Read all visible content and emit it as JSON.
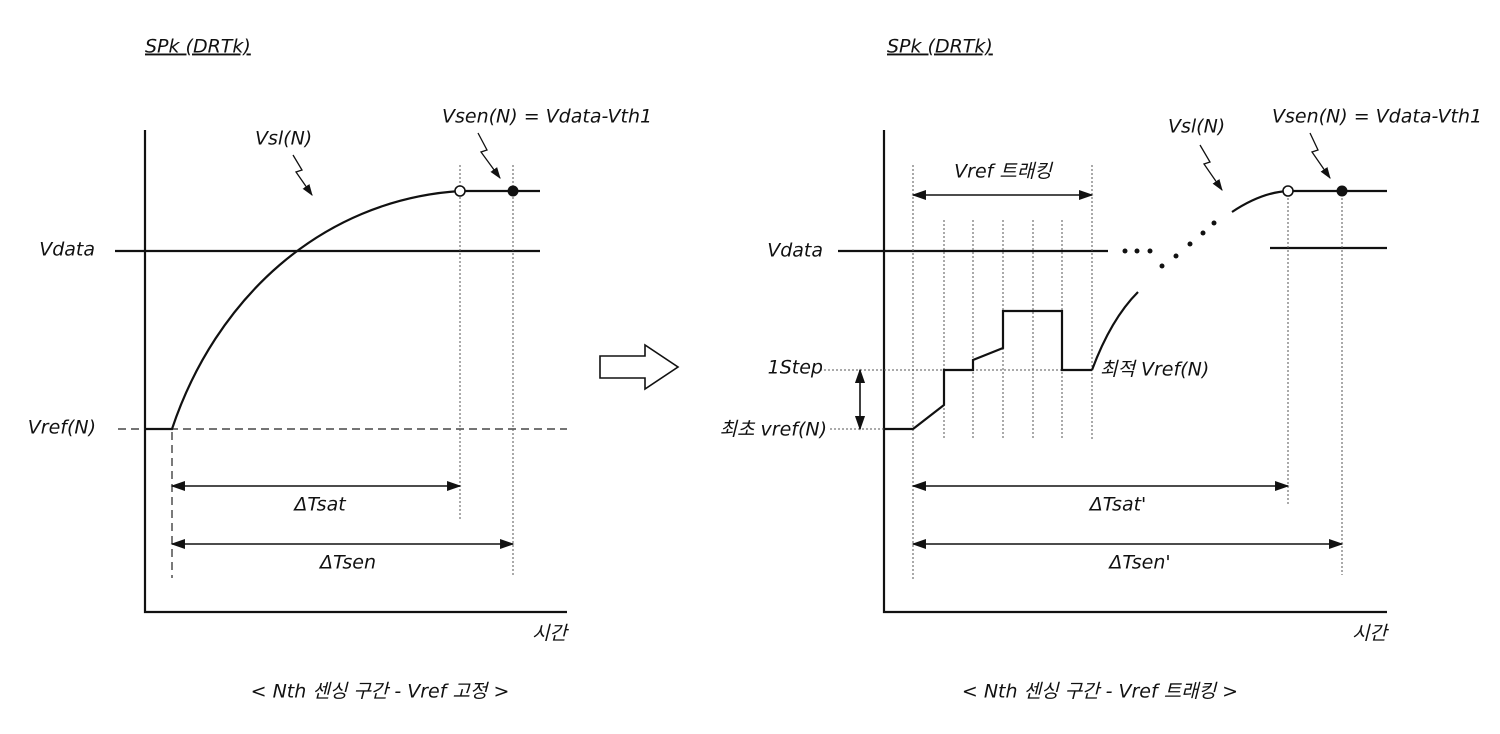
{
  "panels": [
    {
      "title": "SPk (DRTk)",
      "curve_label": "Vsl(N)",
      "sense_label": "Vsen(N) = Vdata-Vth1",
      "vdata_label": "Vdata",
      "vref_label": "Vref(N)",
      "tsat_label": "ΔTsat",
      "tsen_label": "ΔTsen",
      "time_label": "시간",
      "caption": "< Nth 센싱 구간 - Vref 고정 >"
    },
    {
      "title": "SPk (DRTk)",
      "tracking_label": "Vref 트래킹",
      "curve_label": "Vsl(N)",
      "sense_label": "Vsen(N) = Vdata-Vth1",
      "vdata_label": "Vdata",
      "step_label": "1Step",
      "initial_vref_label": "최초 vref(N)",
      "optimal_vref_label": "최적 Vref(N)",
      "tsat_label": "ΔTsat'",
      "tsen_label": "ΔTsen'",
      "time_label": "시간",
      "caption": "< Nth 센싱 구간 - Vref 트래킹 >"
    }
  ]
}
